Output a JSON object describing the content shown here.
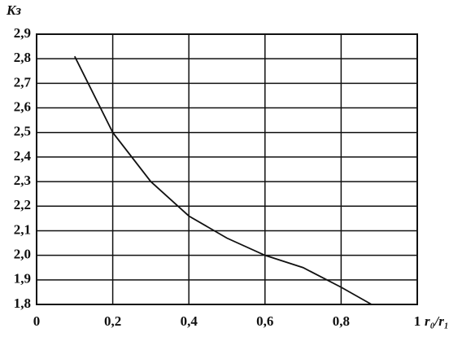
{
  "chart_data": {
    "type": "line",
    "x_label": "r₀/r₁",
    "y_label": "Kз",
    "xlim": [
      0,
      1
    ],
    "ylim": [
      1.8,
      2.9
    ],
    "xticks": [
      0,
      {
        "value": 0.2,
        "label": "0,2"
      },
      {
        "value": 0.4,
        "label": "0,4"
      },
      {
        "value": 0.6,
        "label": "0,6"
      },
      {
        "value": 0.8,
        "label": "0,8"
      },
      1
    ],
    "yticks": [
      {
        "value": 1.8,
        "label": "1,8"
      },
      {
        "value": 1.9,
        "label": "1,9"
      },
      {
        "value": 2.0,
        "label": "2,0"
      },
      {
        "value": 2.1,
        "label": "2,1"
      },
      {
        "value": 2.2,
        "label": "2,2"
      },
      {
        "value": 2.3,
        "label": "2,3"
      },
      {
        "value": 2.4,
        "label": "2,4"
      },
      {
        "value": 2.5,
        "label": "2,5"
      },
      {
        "value": 2.6,
        "label": "2,6"
      },
      {
        "value": 2.7,
        "label": "2,7"
      },
      {
        "value": 2.8,
        "label": "2,8"
      },
      {
        "value": 2.9,
        "label": "2,9"
      }
    ],
    "grid": true,
    "series": [
      {
        "color": "#111111",
        "x": [
          0.1,
          0.2,
          0.3,
          0.4,
          0.5,
          0.6,
          0.7,
          0.8,
          0.88
        ],
        "values": [
          2.81,
          2.5,
          2.3,
          2.16,
          2.07,
          2.0,
          1.95,
          1.87,
          1.8
        ]
      }
    ]
  }
}
